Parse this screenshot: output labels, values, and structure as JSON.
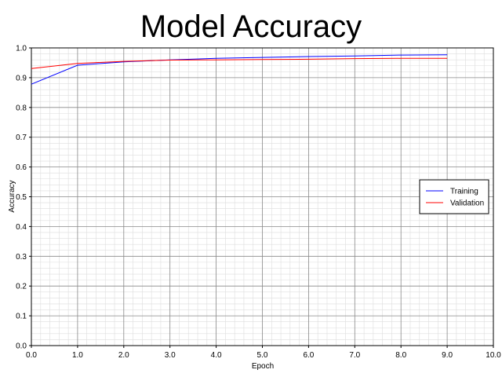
{
  "chart_data": {
    "type": "line",
    "title": "Model Accuracy",
    "xlabel": "Epoch",
    "ylabel": "Accuracy",
    "xlim": [
      0,
      10
    ],
    "ylim": [
      0,
      1
    ],
    "x_ticks": [
      "0.0",
      "1.0",
      "2.0",
      "3.0",
      "4.0",
      "5.0",
      "6.0",
      "7.0",
      "8.0",
      "9.0",
      "10.0"
    ],
    "y_ticks": [
      "0.0",
      "0.1",
      "0.2",
      "0.3",
      "0.4",
      "0.5",
      "0.6",
      "0.7",
      "0.8",
      "0.9",
      "1.0"
    ],
    "grid": true,
    "legend_position": "right",
    "x": [
      0,
      1,
      2,
      3,
      4,
      5,
      6,
      7,
      8,
      9
    ],
    "series": [
      {
        "name": "Training",
        "color": "#0000ff",
        "values": [
          0.878,
          0.942,
          0.953,
          0.96,
          0.965,
          0.968,
          0.971,
          0.973,
          0.976,
          0.977
        ]
      },
      {
        "name": "Validation",
        "color": "#ff0000",
        "values": [
          0.931,
          0.948,
          0.955,
          0.959,
          0.96,
          0.961,
          0.962,
          0.964,
          0.965,
          0.965
        ]
      }
    ]
  }
}
